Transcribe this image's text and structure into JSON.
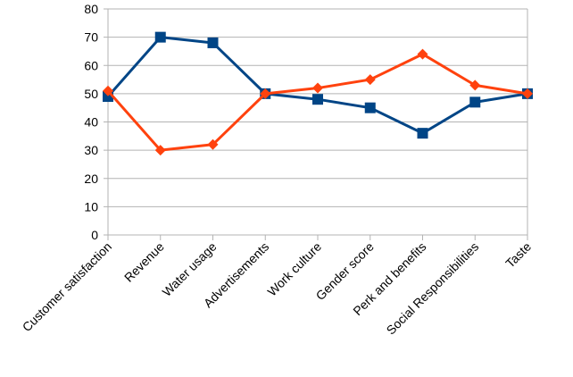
{
  "chart_data": {
    "type": "line",
    "categories": [
      "Customer satisfaction",
      "Revenue",
      "Water usage",
      "Advertisements",
      "Work culture",
      "Gender score",
      "Perk and benefits",
      "Social Responsibilities",
      "Taste"
    ],
    "series": [
      {
        "color": "#004586",
        "marker": "square",
        "values": [
          49,
          70,
          68,
          50,
          48,
          45,
          36,
          47,
          50
        ]
      },
      {
        "color": "#ff420e",
        "marker": "diamond",
        "values": [
          51,
          30,
          32,
          50,
          52,
          55,
          64,
          53,
          50
        ]
      }
    ],
    "ylim": [
      0,
      80
    ],
    "yticks": [
      0,
      10,
      20,
      30,
      40,
      50,
      60,
      70,
      80
    ],
    "grid": true,
    "legend": "none",
    "xlabel": "",
    "ylabel": "",
    "title": ""
  }
}
